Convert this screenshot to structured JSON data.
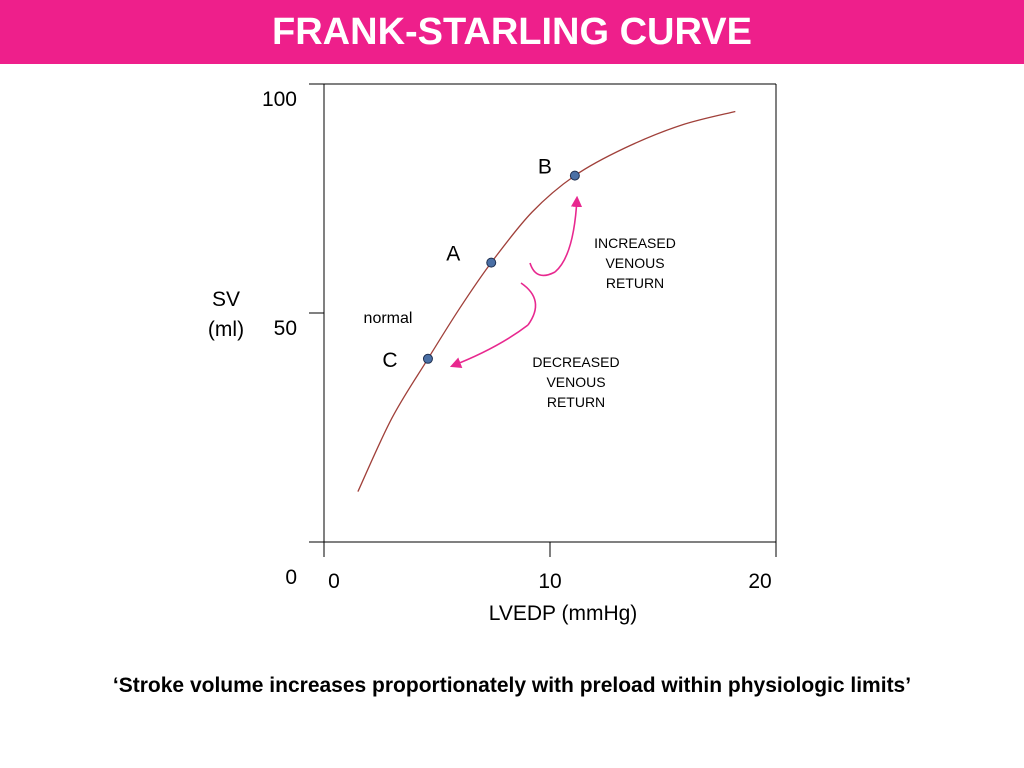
{
  "slide": {
    "title": "FRANK-STARLING CURVE",
    "caption": "‘Stroke volume increases proportionately with preload within physiologic limits’",
    "header_color": "#ee1f8b"
  },
  "chart_data": {
    "type": "line",
    "xlabel": "LVEDP (mmHg)",
    "ylabel": [
      "SV",
      "(ml)"
    ],
    "xlim": [
      0,
      20
    ],
    "ylim": [
      0,
      100
    ],
    "x_ticks": [
      0,
      10,
      20
    ],
    "y_ticks": [
      0,
      50,
      100
    ],
    "grid": false,
    "curve_color": "#a0403a",
    "series": [
      {
        "x": [
          1.5,
          3.0,
          4.6,
          6.0,
          7.4,
          9.2,
          11.1,
          13.3,
          15.8,
          18.2
        ],
        "y": [
          11,
          27,
          40,
          51,
          61,
          72,
          80,
          86,
          91,
          94
        ]
      }
    ],
    "points": [
      {
        "label": "A",
        "x": 7.4,
        "y": 61
      },
      {
        "label": "B",
        "x": 11.1,
        "y": 80
      },
      {
        "label": "C",
        "x": 4.6,
        "y": 40
      }
    ],
    "point_color": "#4a6fa5",
    "arrow_color": "#e8288f",
    "annotations": {
      "normal": "normal",
      "increased": [
        "INCREASED",
        "VENOUS",
        "RETURN"
      ],
      "decreased": [
        "DECREASED",
        "VENOUS",
        "RETURN"
      ]
    }
  }
}
